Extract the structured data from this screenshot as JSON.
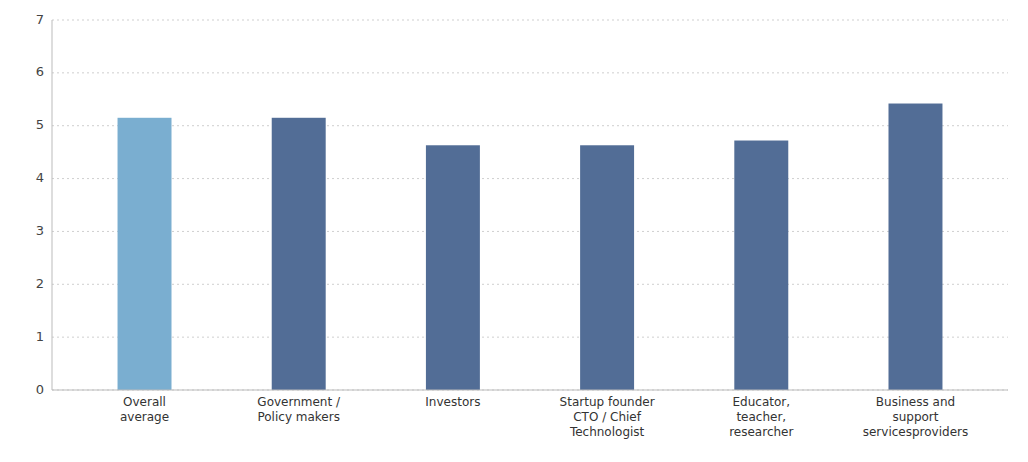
{
  "chart_data": {
    "type": "bar",
    "categories": [
      "Overall\naverage",
      "Government /\nPolicy makers",
      "Investors",
      "Startup founder\nCTO / Chief\nTechnologist",
      "Educator,\nteacher,\nresearcher",
      "Business and\nsupport\nservicesproviders"
    ],
    "values": [
      5.15,
      5.15,
      4.63,
      4.63,
      4.72,
      5.42
    ],
    "colors": [
      "#7aaed0",
      "#526d96",
      "#526d96",
      "#526d96",
      "#526d96",
      "#526d96"
    ],
    "ylim": [
      0,
      7
    ],
    "yticks": [
      0,
      1,
      2,
      3,
      4,
      5,
      6,
      7
    ],
    "grid": true
  }
}
